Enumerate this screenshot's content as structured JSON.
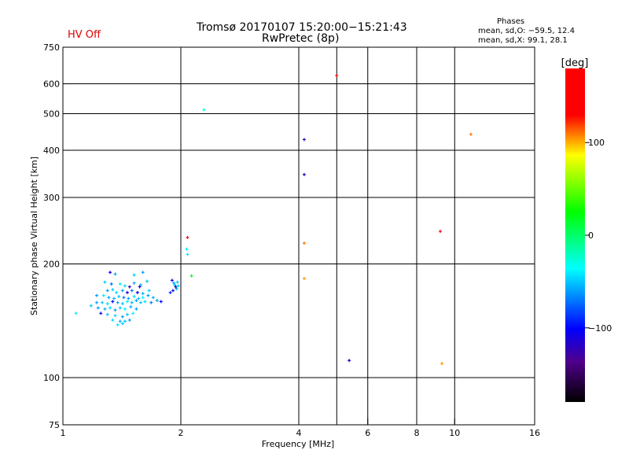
{
  "chart_data": {
    "type": "scatter",
    "title": "Tromsø 20170107 15:20:00−15:21:43",
    "subtitle": "RwPretec (8p)",
    "status": "HV Off",
    "stats": {
      "header": "Phases",
      "line_o": "mean, sd,O: −59.5, 12.4",
      "line_x": "mean, sd,X:  99.1, 28.1"
    },
    "xlabel": "Frequency [MHz]",
    "ylabel": "Stationary phase Virtual Height [km]",
    "xscale": "log",
    "yscale": "log",
    "xlim": [
      1,
      16
    ],
    "ylim": [
      75,
      750
    ],
    "xticks": [
      1,
      2,
      4,
      6,
      8,
      10,
      16
    ],
    "xgrid": [
      2,
      4,
      5,
      6,
      8,
      10
    ],
    "yticks": [
      75,
      100,
      200,
      300,
      400,
      500,
      600,
      750
    ],
    "ygrid": [
      100,
      200,
      300,
      400,
      500,
      600
    ],
    "colorbar": {
      "label": "[deg]",
      "range": [
        -180,
        180
      ],
      "ticks": [
        100,
        0,
        -100
      ],
      "tick_labels": [
        "100",
        "0",
        "−100"
      ]
    },
    "points_fhp": [
      [
        1.08,
        148,
        -40
      ],
      [
        2.29,
        512,
        -30
      ],
      [
        5.0,
        631,
        175
      ],
      [
        4.13,
        427,
        -120
      ],
      [
        4.13,
        345,
        -120
      ],
      [
        11.0,
        441,
        110
      ],
      [
        9.19,
        244,
        140
      ],
      [
        4.13,
        227,
        110
      ],
      [
        4.13,
        183,
        105
      ],
      [
        5.38,
        111,
        -115
      ],
      [
        9.28,
        109,
        105
      ],
      [
        2.08,
        235,
        150
      ],
      [
        2.07,
        219,
        -40
      ],
      [
        2.08,
        212,
        -40
      ],
      [
        2.13,
        186,
        20
      ],
      [
        1.32,
        190,
        -110
      ],
      [
        1.36,
        188,
        -60
      ],
      [
        1.52,
        187,
        -50
      ],
      [
        1.6,
        190,
        -60
      ],
      [
        1.28,
        179,
        -50
      ],
      [
        1.33,
        177,
        -70
      ],
      [
        1.4,
        177,
        -40
      ],
      [
        1.44,
        175,
        -45
      ],
      [
        1.52,
        178,
        -60
      ],
      [
        1.58,
        176,
        -55
      ],
      [
        1.64,
        180,
        -50
      ],
      [
        1.3,
        170,
        -60
      ],
      [
        1.34,
        171,
        -50
      ],
      [
        1.37,
        168,
        -45
      ],
      [
        1.42,
        170,
        -60
      ],
      [
        1.46,
        168,
        -110
      ],
      [
        1.5,
        170,
        -70
      ],
      [
        1.55,
        168,
        -100
      ],
      [
        1.6,
        167,
        -55
      ],
      [
        1.66,
        170,
        -50
      ],
      [
        1.27,
        165,
        -40
      ],
      [
        1.31,
        163,
        -60
      ],
      [
        1.35,
        162,
        -55
      ],
      [
        1.39,
        164,
        -50
      ],
      [
        1.43,
        163,
        -70
      ],
      [
        1.47,
        162,
        -60
      ],
      [
        1.52,
        164,
        -45
      ],
      [
        1.56,
        162,
        -50
      ],
      [
        1.6,
        163,
        -40
      ],
      [
        1.65,
        165,
        -60
      ],
      [
        1.7,
        163,
        -55
      ],
      [
        1.22,
        158,
        -60
      ],
      [
        1.26,
        158,
        -50
      ],
      [
        1.3,
        157,
        -45
      ],
      [
        1.34,
        159,
        -100
      ],
      [
        1.38,
        158,
        -60
      ],
      [
        1.42,
        157,
        -50
      ],
      [
        1.46,
        159,
        -40
      ],
      [
        1.5,
        158,
        -55
      ],
      [
        1.54,
        160,
        -60
      ],
      [
        1.58,
        158,
        -50
      ],
      [
        1.62,
        159,
        -45
      ],
      [
        1.68,
        158,
        -70
      ],
      [
        1.74,
        160,
        -60
      ],
      [
        1.78,
        159,
        -100
      ],
      [
        1.18,
        155,
        -50
      ],
      [
        1.23,
        153,
        -60
      ],
      [
        1.28,
        152,
        -55
      ],
      [
        1.32,
        153,
        -45
      ],
      [
        1.36,
        151,
        -60
      ],
      [
        1.4,
        153,
        -50
      ],
      [
        1.44,
        152,
        -40
      ],
      [
        1.49,
        154,
        -55
      ],
      [
        1.54,
        152,
        -60
      ],
      [
        1.25,
        148,
        -110
      ],
      [
        1.3,
        147,
        -50
      ],
      [
        1.36,
        146,
        -45
      ],
      [
        1.42,
        145,
        -60
      ],
      [
        1.46,
        147,
        -50
      ],
      [
        1.51,
        148,
        -40
      ],
      [
        1.34,
        142,
        -45
      ],
      [
        1.4,
        141,
        -55
      ],
      [
        1.44,
        141,
        -50
      ],
      [
        1.48,
        142,
        -60
      ],
      [
        1.38,
        138,
        -40
      ],
      [
        1.42,
        139,
        -50
      ],
      [
        1.9,
        181,
        -110
      ],
      [
        1.92,
        178,
        -60
      ],
      [
        1.93,
        176,
        -50
      ],
      [
        1.94,
        174,
        -120
      ],
      [
        1.95,
        172,
        -60
      ],
      [
        1.91,
        170,
        -110
      ],
      [
        1.88,
        168,
        -90
      ],
      [
        1.96,
        179,
        -50
      ],
      [
        1.97,
        175,
        -45
      ],
      [
        1.22,
        165,
        -60
      ],
      [
        1.48,
        174,
        -120
      ],
      [
        1.57,
        174,
        -110
      ]
    ]
  }
}
